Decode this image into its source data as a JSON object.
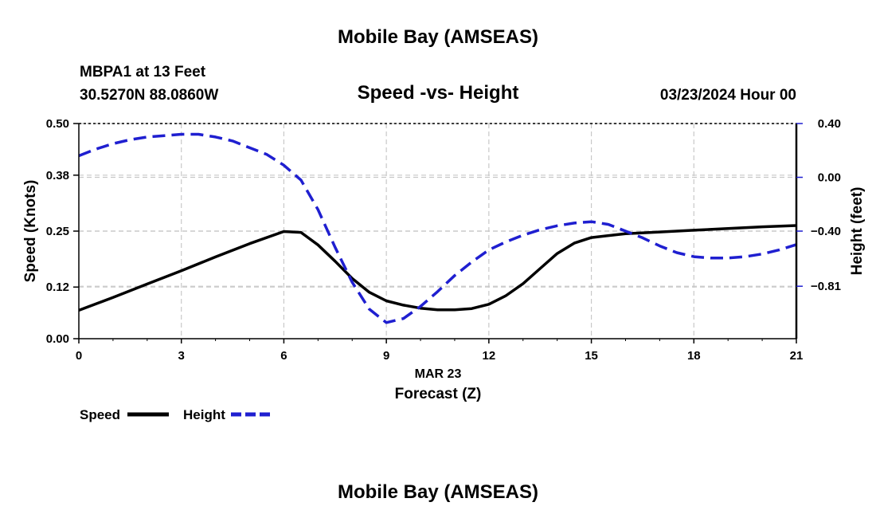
{
  "header": {
    "title": "Mobile Bay (AMSEAS)",
    "station": "MBPA1 at 13 Feet",
    "coords": "30.5270N  88.0860W",
    "subtitle": "Speed -vs- Height",
    "datetime": "03/23/2024 Hour 00"
  },
  "footer": {
    "title": "Mobile Bay (AMSEAS)"
  },
  "legend": {
    "items": [
      {
        "label": "Speed",
        "color": "#000000",
        "style": "solid"
      },
      {
        "label": "Height",
        "color": "#1f1fd0",
        "style": "dashed"
      }
    ]
  },
  "chart_data": {
    "type": "line",
    "title": "Speed -vs- Height",
    "xlabel": "Forecast (Z)",
    "xlabel_date": "MAR 23",
    "xlim": [
      0,
      21
    ],
    "x_ticks": [
      0,
      3,
      6,
      9,
      12,
      15,
      18,
      21
    ],
    "x_tick_labels": [
      "0",
      "3",
      "6",
      "9",
      "12",
      "15",
      "18",
      "21"
    ],
    "ylabel_left": "Speed (Knots)",
    "ylim_left": [
      0,
      0.5
    ],
    "y_ticks_left": [
      0.0,
      0.12,
      0.25,
      0.38,
      0.5
    ],
    "y_tick_labels_left": [
      "0.00",
      "0.12",
      "0.25",
      "0.38",
      "0.50"
    ],
    "ylabel_right": "Height (feet)",
    "ylim_right": [
      -1.2,
      0.4
    ],
    "y_ticks_right": [
      0.4,
      0.0,
      -0.4,
      -0.81
    ],
    "y_tick_labels_right": [
      "0.40",
      "0.00",
      "−0.40",
      "−0.81"
    ],
    "grid": true,
    "series": [
      {
        "name": "Speed",
        "axis": "left",
        "color": "#000000",
        "style": "solid",
        "x": [
          0,
          1,
          2,
          3,
          4,
          5,
          6,
          6.5,
          7,
          7.5,
          8,
          8.5,
          9,
          9.5,
          10,
          10.5,
          11,
          11.5,
          12,
          12.5,
          13,
          13.5,
          14,
          14.5,
          15,
          16,
          17,
          18,
          19,
          20,
          21
        ],
        "values": [
          0.066,
          0.096,
          0.127,
          0.158,
          0.19,
          0.221,
          0.249,
          0.247,
          0.218,
          0.18,
          0.14,
          0.108,
          0.088,
          0.078,
          0.071,
          0.067,
          0.067,
          0.07,
          0.08,
          0.1,
          0.128,
          0.163,
          0.198,
          0.222,
          0.235,
          0.244,
          0.248,
          0.252,
          0.256,
          0.26,
          0.263
        ]
      },
      {
        "name": "Height",
        "axis": "right",
        "color": "#1f1fd0",
        "style": "dashed",
        "x": [
          0,
          0.5,
          1,
          1.5,
          2,
          2.5,
          3,
          3.5,
          4,
          4.5,
          5,
          5.5,
          6,
          6.5,
          7,
          7.5,
          8,
          8.5,
          9,
          9.5,
          10,
          10.5,
          11,
          11.5,
          12,
          12.5,
          13,
          13.5,
          14,
          14.5,
          15,
          15.5,
          16,
          16.5,
          17,
          17.5,
          18,
          18.5,
          19,
          19.5,
          20,
          20.5,
          21
        ],
        "values": [
          0.16,
          0.21,
          0.25,
          0.28,
          0.3,
          0.31,
          0.32,
          0.32,
          0.3,
          0.27,
          0.22,
          0.17,
          0.09,
          -0.02,
          -0.24,
          -0.52,
          -0.78,
          -0.98,
          -1.08,
          -1.05,
          -0.96,
          -0.85,
          -0.73,
          -0.63,
          -0.54,
          -0.48,
          -0.43,
          -0.39,
          -0.36,
          -0.34,
          -0.33,
          -0.35,
          -0.4,
          -0.45,
          -0.51,
          -0.56,
          -0.59,
          -0.6,
          -0.6,
          -0.59,
          -0.57,
          -0.54,
          -0.5
        ]
      }
    ]
  }
}
